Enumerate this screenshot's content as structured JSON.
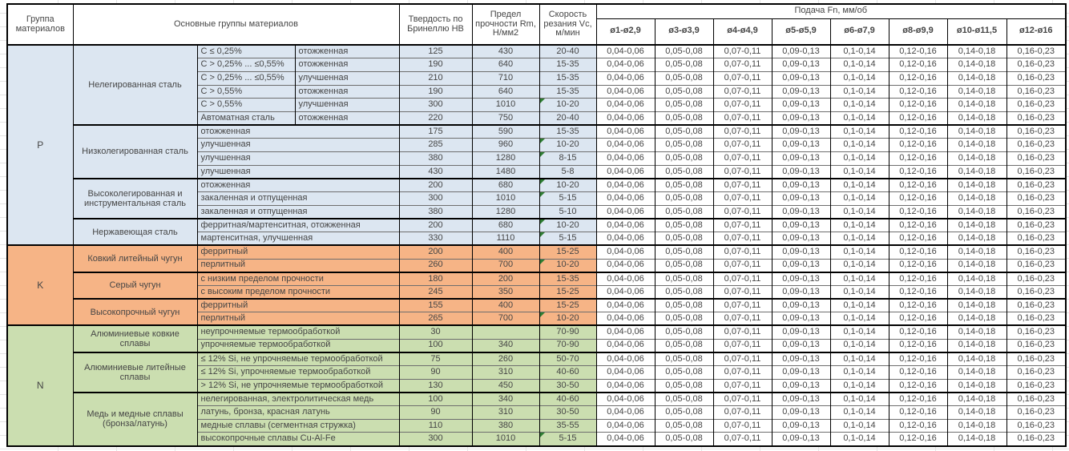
{
  "header": {
    "col_group": "Группа материалов",
    "col_materials": "Основные группы материалов",
    "col_hardness": "Твердость по Бринеллю НВ",
    "col_strength": "Предел прочности Rm, Н/мм2",
    "col_speed": "Скорость резания Vc, м/мин",
    "col_feed": "Подача Fn, мм/об",
    "feed_cols": [
      "ø1-ø2,9",
      "ø3-ø3,9",
      "ø4-ø4,9",
      "ø5-ø5,9",
      "ø6-ø7,9",
      "ø8-ø9,9",
      "ø10-ø11,5",
      "ø12-ø16"
    ]
  },
  "feed_values": [
    "0,04-0,06",
    "0,05-0,08",
    "0,07-0,11",
    "0,09-0,13",
    "0,1-0,14",
    "0,12-0,16",
    "0,14-0,18",
    "0,16-0,23"
  ],
  "colors": {
    "p": "#dce6f1",
    "k": "#f6b486",
    "n": "#cbdeb0",
    "flag_green": "#2e7d32"
  },
  "groups": [
    {
      "code": "P",
      "color_key": "p",
      "subgroups": [
        {
          "name": "Нелегированная сталь",
          "rows": [
            {
              "d1": "C ≤ 0,25%",
              "d2": "отожженная",
              "hb": "125",
              "rm": "430",
              "vc": "20-40",
              "flag": false
            },
            {
              "d1": "C > 0,25% ... ≤0,55%",
              "d2": "отожженная",
              "hb": "190",
              "rm": "640",
              "vc": "15-35",
              "flag": false
            },
            {
              "d1": "C > 0,25% ... ≤0,55%",
              "d2": "улучшенная",
              "hb": "210",
              "rm": "710",
              "vc": "15-35",
              "flag": false
            },
            {
              "d1": "C > 0,55%",
              "d2": "отожженная",
              "hb": "190",
              "rm": "640",
              "vc": "15-35",
              "flag": false
            },
            {
              "d1": "C > 0,55%",
              "d2": "улучшенная",
              "hb": "300",
              "rm": "1010",
              "vc": "10-20",
              "flag": true
            },
            {
              "d1": "Автоматная сталь",
              "d2": "отожженная",
              "hb": "220",
              "rm": "750",
              "vc": "20-40",
              "flag": false
            }
          ]
        },
        {
          "name": "Низколегированная сталь",
          "rows": [
            {
              "d1": "отожженная",
              "hb": "175",
              "rm": "590",
              "vc": "15-35",
              "flag": false
            },
            {
              "d1": "улучшенная",
              "hb": "285",
              "rm": "960",
              "vc": "10-20",
              "flag": true
            },
            {
              "d1": "улучшенная",
              "hb": "380",
              "rm": "1280",
              "vc": "8-15",
              "flag": true
            },
            {
              "d1": "улучшенная",
              "hb": "430",
              "rm": "1480",
              "vc": "5-8",
              "flag": false
            }
          ]
        },
        {
          "name": "Высоколегированная и инструментальная сталь",
          "rows": [
            {
              "d1": "отожженная",
              "hb": "200",
              "rm": "680",
              "vc": "10-20",
              "flag": true
            },
            {
              "d1": "закаленная и отпущенная",
              "hb": "300",
              "rm": "1010",
              "vc": "5-15",
              "flag": true
            },
            {
              "d1": "закаленная и отпущенная",
              "hb": "380",
              "rm": "1280",
              "vc": "5-10",
              "flag": false
            }
          ]
        },
        {
          "name": "Нержавеющая сталь",
          "rows": [
            {
              "d1": "ферритная/мартенситная, отожженная",
              "hb": "200",
              "rm": "680",
              "vc": "10-20",
              "flag": true
            },
            {
              "d1": "мартенситная, улучшенная",
              "hb": "330",
              "rm": "1110",
              "vc": "5-15",
              "flag": true
            }
          ]
        }
      ]
    },
    {
      "code": "K",
      "color_key": "k",
      "subgroups": [
        {
          "name": "Ковкий литейный чугун",
          "rows": [
            {
              "d1": "ферритный",
              "hb": "200",
              "rm": "400",
              "vc": "15-25",
              "flag": false
            },
            {
              "d1": "перлитный",
              "hb": "260",
              "rm": "700",
              "vc": "10-20",
              "flag": true
            }
          ]
        },
        {
          "name": "Серый чугун",
          "rows": [
            {
              "d1": "с низким пределом прочности",
              "hb": "180",
              "rm": "200",
              "vc": "15-35",
              "flag": false
            },
            {
              "d1": "с высоким пределом прочности",
              "hb": "245",
              "rm": "350",
              "vc": "15-25",
              "flag": false
            }
          ]
        },
        {
          "name": "Высокопрочный чугун",
          "rows": [
            {
              "d1": "ферритный",
              "hb": "155",
              "rm": "400",
              "vc": "15-25",
              "flag": false
            },
            {
              "d1": "перлитный",
              "hb": "265",
              "rm": "700",
              "vc": "10-20",
              "flag": true
            }
          ]
        }
      ]
    },
    {
      "code": "N",
      "color_key": "n",
      "subgroups": [
        {
          "name": "Алюминиевые ковкие сплавы",
          "rows": [
            {
              "d1": "неупрочняемые термообработкой",
              "hb": "30",
              "rm": "",
              "vc": "70-90",
              "flag": false
            },
            {
              "d1": "упрочняемые термообработкой",
              "hb": "100",
              "rm": "340",
              "vc": "70-90",
              "flag": false
            }
          ]
        },
        {
          "name": "Алюминиевые литейные сплавы",
          "rows": [
            {
              "d1": "≤ 12% Si, не упрочняемые термообработкой",
              "hb": "75",
              "rm": "260",
              "vc": "50-70",
              "flag": false
            },
            {
              "d1": "≤ 12% Si, упрочняемые термообработкой",
              "hb": "90",
              "rm": "310",
              "vc": "40-60",
              "flag": false
            },
            {
              "d1": "> 12% Si, не упрочняемые термообработкой",
              "hb": "130",
              "rm": "450",
              "vc": "30-50",
              "flag": false
            }
          ]
        },
        {
          "name": "Медь и медные сплавы (бронза/латунь)",
          "rows": [
            {
              "d1": "нелегированная, электролитическая медь",
              "hb": "100",
              "rm": "340",
              "vc": "40-60",
              "flag": false
            },
            {
              "d1": "латунь, бронза, красная латунь",
              "hb": "90",
              "rm": "310",
              "vc": "30-50",
              "flag": false
            },
            {
              "d1": "медные сплавы (сегментная стружка)",
              "hb": "110",
              "rm": "380",
              "vc": "35-55",
              "flag": false
            },
            {
              "d1": "высокопрочные сплавы Cu-Al-Fe",
              "hb": "300",
              "rm": "1010",
              "vc": "5-15",
              "flag": true
            }
          ]
        }
      ]
    }
  ]
}
